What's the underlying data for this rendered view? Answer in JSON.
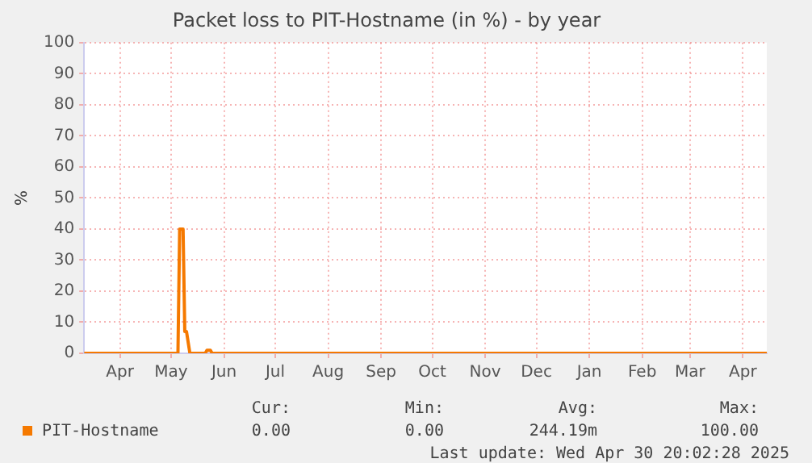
{
  "chart_data": {
    "type": "line",
    "title": "Packet loss to PIT-Hostname (in %) - by year",
    "ylabel": "%",
    "x": [
      "2024-03-26",
      "2024-05-20",
      "2024-05-21",
      "2024-05-23",
      "2024-05-24",
      "2024-05-25",
      "2024-05-27",
      "2024-06-05",
      "2024-06-06",
      "2024-06-08",
      "2024-06-09",
      "2025-04-30"
    ],
    "series": [
      {
        "name": "PIT-Hostname",
        "color": "#f57900",
        "values": [
          0,
          0,
          40,
          40,
          7,
          7,
          0,
          0,
          1,
          1,
          0,
          0
        ]
      }
    ],
    "xlim": [
      "2024-03-26",
      "2025-04-30"
    ],
    "xticks": [
      {
        "value": "2024-04-16",
        "label": "Apr"
      },
      {
        "value": "2024-05-16",
        "label": "May"
      },
      {
        "value": "2024-06-16",
        "label": "Jun"
      },
      {
        "value": "2024-07-16",
        "label": "Jul"
      },
      {
        "value": "2024-08-16",
        "label": "Aug"
      },
      {
        "value": "2024-09-16",
        "label": "Sep"
      },
      {
        "value": "2024-10-16",
        "label": "Oct"
      },
      {
        "value": "2024-11-16",
        "label": "Nov"
      },
      {
        "value": "2024-12-16",
        "label": "Dec"
      },
      {
        "value": "2025-01-16",
        "label": "Jan"
      },
      {
        "value": "2025-02-16",
        "label": "Feb"
      },
      {
        "value": "2025-03-16",
        "label": "Mar"
      },
      {
        "value": "2025-04-16",
        "label": "Apr"
      }
    ],
    "ylim": [
      0,
      100
    ],
    "yticks": [
      0,
      10,
      20,
      30,
      40,
      50,
      60,
      70,
      80,
      90,
      100
    ],
    "grid": true,
    "legend": "bottom",
    "marker": "none",
    "line_style": "solid",
    "annotations": [
      "Cur:",
      "Min:",
      "Avg:",
      "Max:",
      "0.00",
      "0.00",
      "244.19m",
      "100.00",
      "Last update: Wed Apr 30 20:02:28 2025"
    ]
  }
}
